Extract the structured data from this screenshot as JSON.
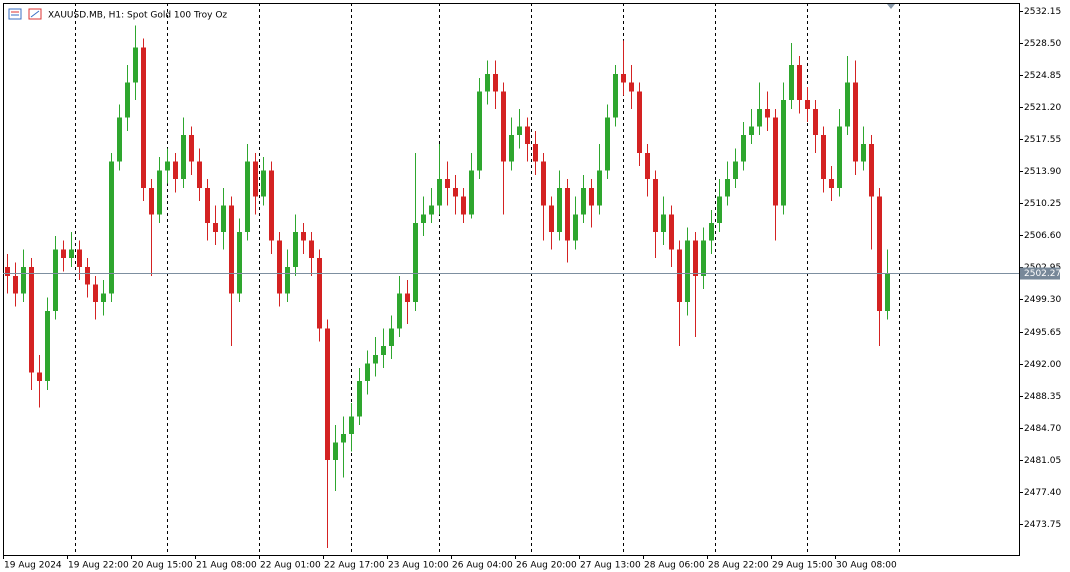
{
  "chart_data": {
    "type": "candlestick",
    "title": "XAUUSD.MB, H1:  Spot Gold 100 Troy Oz",
    "bull_color": "#2ea62e",
    "bear_color": "#d42222",
    "current_price": 2502.27,
    "categories": [
      "19 Aug 2024",
      null,
      null,
      null,
      null,
      null,
      null,
      null,
      "19 Aug 22:00",
      null,
      null,
      null,
      null,
      null,
      null,
      null,
      "20 Aug 15:00",
      null,
      null,
      null,
      null,
      null,
      null,
      null,
      "21 Aug 08:00",
      null,
      null,
      null,
      null,
      null,
      null,
      null,
      "22 Aug 01:00",
      null,
      null,
      null,
      null,
      null,
      null,
      null,
      "22 Aug 17:00",
      null,
      null,
      null,
      null,
      null,
      null,
      null,
      "23 Aug 10:00",
      null,
      null,
      null,
      null,
      null,
      null,
      null,
      "26 Aug 04:00",
      null,
      null,
      null,
      null,
      null,
      null,
      null,
      "26 Aug 20:00",
      null,
      null,
      null,
      null,
      null,
      null,
      null,
      "27 Aug 13:00",
      null,
      null,
      null,
      null,
      null,
      null,
      null,
      "28 Aug 06:00",
      null,
      null,
      null,
      null,
      null,
      null,
      null,
      "28 Aug 22:00",
      null,
      null,
      null,
      null,
      null,
      null,
      null,
      "29 Aug 15:00",
      null,
      null,
      null,
      null,
      null,
      null,
      null,
      "30 Aug 08:00",
      null,
      null,
      null,
      null,
      null,
      null
    ],
    "open": [
      2503,
      2502,
      2500,
      2503,
      2491,
      2490,
      2498,
      2505,
      2504,
      2505,
      2503,
      2501,
      2499,
      2500,
      2515,
      2520,
      2524,
      2528,
      2512,
      2509,
      2514,
      2515,
      2513,
      2518,
      2515,
      2512,
      2508,
      2507,
      2510,
      2500,
      2507,
      2515,
      2511,
      2514,
      2506,
      2500,
      2503,
      2507,
      2506,
      2504,
      2496,
      2481,
      2483,
      2484,
      2486,
      2490,
      2492,
      2493,
      2494,
      2496,
      2500,
      2499,
      2508,
      2509,
      2510,
      2513,
      2512,
      2511,
      2509,
      2514,
      2523,
      2525,
      2523,
      2515,
      2518,
      2519,
      2517,
      2515,
      2510,
      2507,
      2512,
      2506,
      2509,
      2512,
      2510,
      2514,
      2520,
      2525,
      2524,
      2523,
      2516,
      2513,
      2507,
      2509,
      2505,
      2499,
      2506,
      2502,
      2506,
      2508,
      2511,
      2513,
      2515,
      2518,
      2519,
      2521,
      2520,
      2510,
      2522,
      2526,
      2522,
      2521,
      2518,
      2513,
      2512,
      2519,
      2524,
      2515,
      2517,
      2511,
      2498
    ],
    "high": [
      2504.5,
      2503.5,
      2505,
      2504,
      2493,
      2499.5,
      2506.5,
      2506,
      2507,
      2506,
      2504,
      2502,
      2501.5,
      2516,
      2521.5,
      2526,
      2530.5,
      2529,
      2513,
      2515.5,
      2516.5,
      2516,
      2520,
      2519,
      2516.5,
      2513,
      2510,
      2512,
      2511,
      2508.5,
      2517,
      2516,
      2515.5,
      2515,
      2507,
      2505,
      2509,
      2508,
      2507,
      2505,
      2497,
      2485,
      2486,
      2487.5,
      2491.5,
      2493.5,
      2495,
      2496,
      2497.5,
      2502,
      2501.5,
      2516,
      2511,
      2512,
      2517,
      2515,
      2513.5,
      2512,
      2516,
      2524.5,
      2526.5,
      2526.5,
      2524,
      2520,
      2521,
      2520,
      2518.5,
      2516,
      2511,
      2514,
      2513,
      2511,
      2513.5,
      2513,
      2517,
      2521.5,
      2526,
      2528.8,
      2526,
      2524,
      2517,
      2514,
      2511,
      2510,
      2506,
      2507.5,
      2507,
      2507.5,
      2509.5,
      2513,
      2515,
      2516.5,
      2519.5,
      2521,
      2524,
      2523,
      2521,
      2524,
      2528.5,
      2527,
      2523.5,
      2522,
      2519,
      2514.5,
      2521,
      2527,
      2526.5,
      2519,
      2518,
      2512,
      2505
    ],
    "low": [
      2500,
      2498.5,
      2499,
      2489,
      2487,
      2489,
      2497,
      2502.5,
      2503,
      2501.5,
      2499.5,
      2497,
      2497.5,
      2499,
      2514,
      2518.5,
      2522,
      2510.5,
      2502,
      2508,
      2512.5,
      2511.5,
      2512,
      2513.5,
      2510.5,
      2506,
      2505.5,
      2505,
      2494,
      2499,
      2506,
      2509,
      2510,
      2504.5,
      2498.5,
      2499,
      2502,
      2504.5,
      2502,
      2494.5,
      2471,
      2477.5,
      2479,
      2482,
      2485,
      2488.5,
      2490.5,
      2491.5,
      2492.5,
      2495,
      2496.5,
      2498,
      2506.5,
      2508,
      2509,
      2510,
      2509,
      2508,
      2508.5,
      2513,
      2521.5,
      2521,
      2509,
      2514,
      2516.5,
      2515,
      2513.5,
      2506,
      2505,
      2506,
      2503.5,
      2505,
      2508,
      2507.5,
      2509,
      2513,
      2519,
      2522.5,
      2521,
      2514.5,
      2511,
      2504,
      2505.5,
      2503,
      2494,
      2497.5,
      2495,
      2500.5,
      2504.5,
      2507,
      2510,
      2512,
      2514,
      2517,
      2518,
      2518.5,
      2506,
      2509,
      2521,
      2520.5,
      2519.5,
      2516,
      2511.5,
      2510.5,
      2511,
      2518,
      2513.5,
      2514,
      2505,
      2494,
      2497
    ],
    "close": [
      2502,
      2500,
      2503,
      2491,
      2490,
      2498,
      2505,
      2504,
      2505,
      2503,
      2501,
      2499,
      2500,
      2515,
      2520,
      2524,
      2528,
      2512,
      2509,
      2514,
      2515,
      2513,
      2518,
      2515,
      2512,
      2508,
      2507,
      2510,
      2500,
      2507,
      2515,
      2511,
      2514,
      2506,
      2500,
      2503,
      2507,
      2506,
      2504,
      2496,
      2481,
      2483,
      2484,
      2486,
      2490,
      2492,
      2493,
      2494,
      2496,
      2500,
      2499,
      2508,
      2509,
      2510,
      2513,
      2512,
      2511,
      2509,
      2514,
      2523,
      2525,
      2523,
      2515,
      2518,
      2519,
      2517,
      2515,
      2510,
      2507,
      2512,
      2506,
      2509,
      2512,
      2510,
      2514,
      2520,
      2525,
      2524,
      2523,
      2516,
      2513,
      2507,
      2509,
      2505,
      2499,
      2506,
      2502,
      2506,
      2508,
      2511,
      2513,
      2515,
      2518,
      2519,
      2521,
      2520,
      2510,
      2522,
      2526,
      2522,
      2521,
      2518,
      2513,
      2512,
      2519,
      2524,
      2515,
      2517,
      2511,
      2498,
      2502.27
    ],
    "ylim": [
      2470.2,
      2533.06
    ],
    "yticks": [
      {
        "value": 2532.15,
        "label": "2532.15"
      },
      {
        "value": 2528.5,
        "label": "2528.50"
      },
      {
        "value": 2524.85,
        "label": "2524.85"
      },
      {
        "value": 2521.2,
        "label": "2521.20"
      },
      {
        "value": 2517.55,
        "label": "2517.55"
      },
      {
        "value": 2513.9,
        "label": "2513.90"
      },
      {
        "value": 2510.25,
        "label": "2510.25"
      },
      {
        "value": 2506.6,
        "label": "2506.60"
      },
      {
        "value": 2502.95,
        "label": "2502.95"
      },
      {
        "value": 2499.3,
        "label": "2499.30"
      },
      {
        "value": 2495.65,
        "label": "2495.65"
      },
      {
        "value": 2492,
        "label": "2492.00"
      },
      {
        "value": 2488.35,
        "label": "2488.35"
      },
      {
        "value": 2484.7,
        "label": "2484.70"
      },
      {
        "value": 2481.05,
        "label": "2481.05"
      },
      {
        "value": 2477.4,
        "label": "2477.40"
      },
      {
        "value": 2473.75,
        "label": "2473.75"
      }
    ]
  }
}
